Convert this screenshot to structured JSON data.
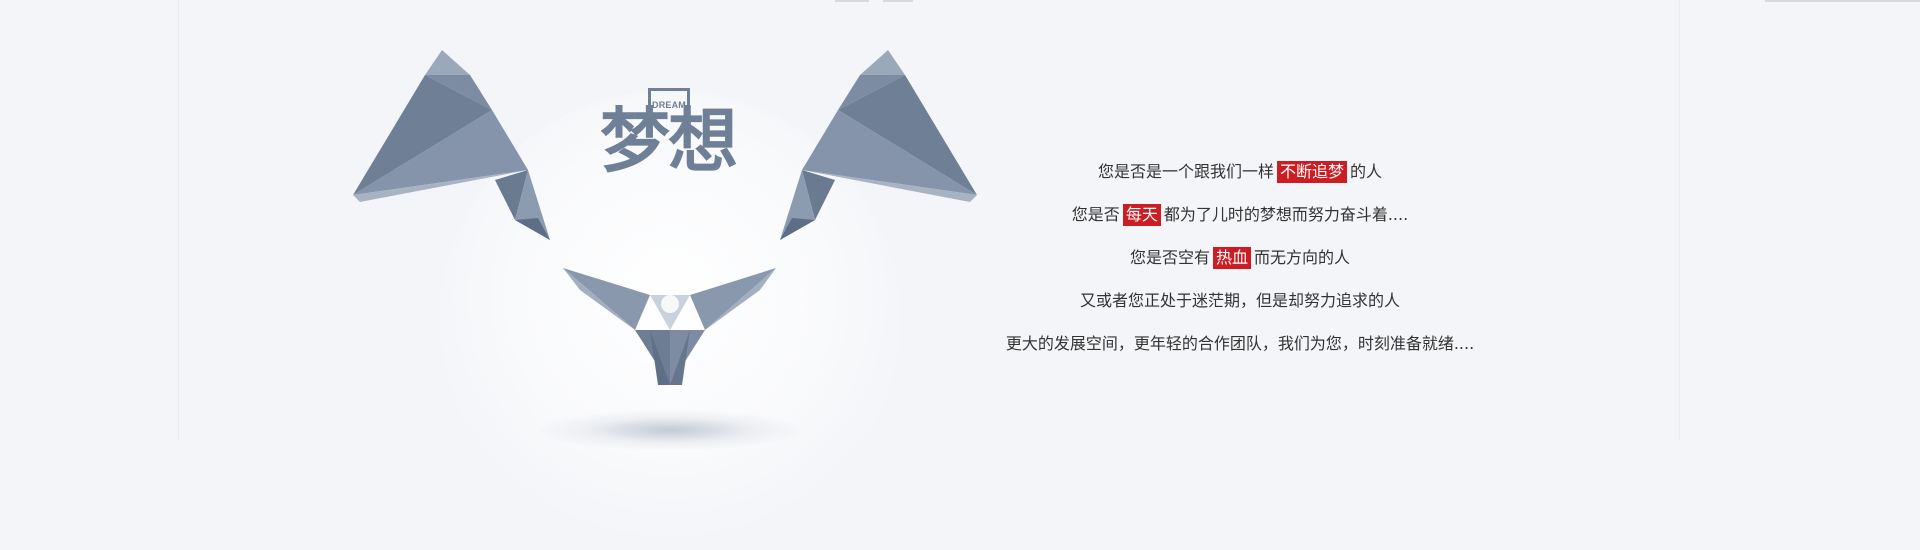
{
  "hero": {
    "title": "梦想",
    "title_tag": "DREAM",
    "accent_color": "#cc1c24",
    "icon_color": "#6e7f96"
  },
  "copy": {
    "lines": [
      {
        "before": "您是否是一个跟我们一样",
        "highlight": "不断追梦",
        "after": "的人"
      },
      {
        "before": "您是否",
        "highlight": "每天",
        "after": "都为了儿时的梦想而努力奋斗着...."
      },
      {
        "before": "您是否空有",
        "highlight": "热血",
        "after": "而无方向的人"
      },
      {
        "text": "又或者您正处于迷茫期，但是却努力追求的人"
      },
      {
        "text": "更大的发展空间，更年轻的合作团队，我们为您，时刻准备就绪...."
      }
    ]
  }
}
